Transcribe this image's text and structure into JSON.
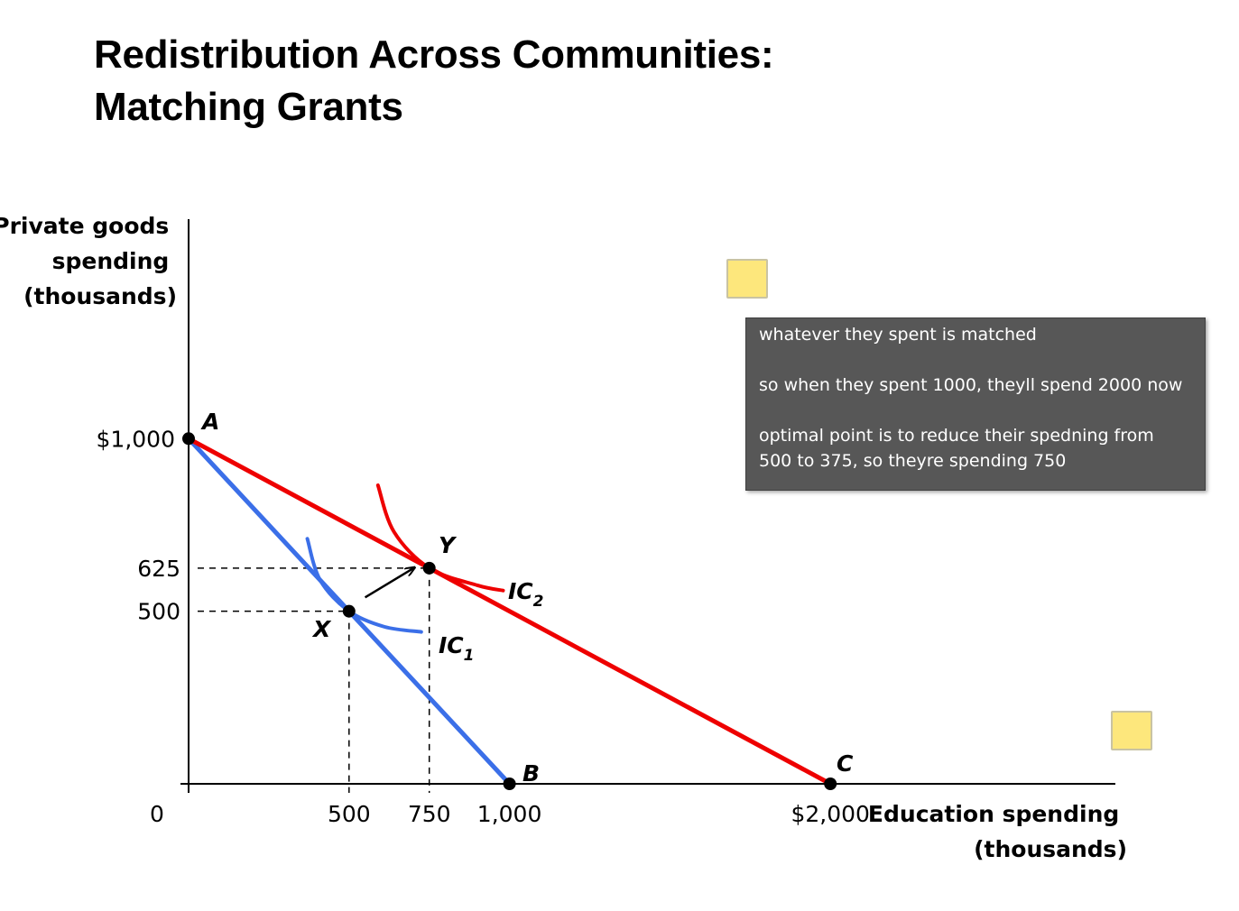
{
  "title": {
    "line1": "Redistribution Across Communities:",
    "line2": "Matching Grants"
  },
  "chart_data": {
    "type": "line",
    "xlabel_lines": [
      "Education spending",
      "(thousands)"
    ],
    "ylabel_lines": [
      "Private goods",
      "spending",
      "(thousands)"
    ],
    "xlim": [
      0,
      2000
    ],
    "ylim": [
      0,
      1000
    ],
    "origin_label": "0",
    "x_ticks": [
      {
        "value": 500,
        "label": "500"
      },
      {
        "value": 750,
        "label": "750"
      },
      {
        "value": 1000,
        "label": "1,000"
      },
      {
        "value": 2000,
        "label": "$2,000"
      }
    ],
    "y_ticks": [
      {
        "value": 1000,
        "label": "$1,000"
      },
      {
        "value": 625,
        "label": "625"
      },
      {
        "value": 500,
        "label": "500"
      }
    ],
    "series": [
      {
        "key": "original",
        "color": "#3b6fe8",
        "points": [
          [
            0,
            1000
          ],
          [
            1000,
            0
          ]
        ]
      },
      {
        "key": "matching",
        "color": "#ee0000",
        "points": [
          [
            0,
            1000
          ],
          [
            2000,
            0
          ]
        ]
      }
    ],
    "curves": [
      {
        "label": "IC",
        "subscript": "1",
        "color": "#3b6fe8",
        "points": [
          [
            370,
            710
          ],
          [
            410,
            590
          ],
          [
            500,
            500
          ],
          [
            610,
            455
          ],
          [
            725,
            440
          ]
        ]
      },
      {
        "label": "IC",
        "subscript": "2",
        "color": "#ee0000",
        "points": [
          [
            590,
            865
          ],
          [
            640,
            730
          ],
          [
            750,
            625
          ],
          [
            900,
            575
          ],
          [
            980,
            560
          ]
        ]
      }
    ],
    "points": [
      {
        "label": "A",
        "x": 0,
        "y": 1000
      },
      {
        "label": "B",
        "x": 1000,
        "y": 0
      },
      {
        "label": "C",
        "x": 2000,
        "y": 0
      },
      {
        "label": "X",
        "x": 500,
        "y": 500
      },
      {
        "label": "Y",
        "x": 750,
        "y": 625
      }
    ],
    "guides": [
      {
        "x": 500,
        "y": 500
      },
      {
        "x": 750,
        "y": 625
      }
    ],
    "arrow": {
      "from": [
        550,
        540
      ],
      "to": [
        705,
        627
      ]
    },
    "colors": {
      "axis": "#000000",
      "original": "#3b6fe8",
      "matching": "#ee0000"
    }
  },
  "annotation": {
    "paragraphs": [
      "whatever they spent is matched",
      "so when they spent 1000, theyll spend 2000 now",
      "optimal point is to reduce their spedning from 500 to 375, so theyre spending 750"
    ]
  }
}
